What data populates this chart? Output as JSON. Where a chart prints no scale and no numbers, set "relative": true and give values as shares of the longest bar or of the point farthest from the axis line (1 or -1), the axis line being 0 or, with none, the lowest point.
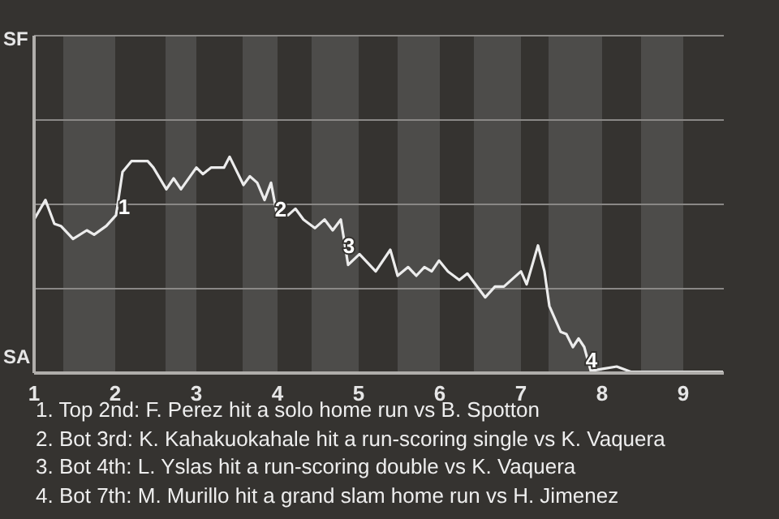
{
  "chart_data": {
    "type": "line",
    "x": [
      1.0,
      1.14,
      1.25,
      1.33,
      1.48,
      1.65,
      1.74,
      1.89,
      2.01,
      2.09,
      2.2,
      2.4,
      2.47,
      2.63,
      2.72,
      2.81,
      3.0,
      3.08,
      3.18,
      3.34,
      3.41,
      3.58,
      3.66,
      3.75,
      3.84,
      3.92,
      3.99,
      4.13,
      4.22,
      4.32,
      4.46,
      4.58,
      4.68,
      4.78,
      4.87,
      5.01,
      5.21,
      5.39,
      5.48,
      5.61,
      5.71,
      5.81,
      5.9,
      5.99,
      6.1,
      6.24,
      6.34,
      6.56,
      6.68,
      6.79,
      7.0,
      7.07,
      7.21,
      7.29,
      7.35,
      7.49,
      7.56,
      7.64,
      7.71,
      7.78,
      7.86,
      8.02,
      8.18,
      8.36,
      8.52,
      9.49
    ],
    "series": [
      {
        "color": "#ececec",
        "values": [
          0.71,
          0.8,
          0.69,
          0.68,
          0.62,
          0.66,
          0.64,
          0.68,
          0.73,
          0.93,
          0.98,
          0.98,
          0.95,
          0.85,
          0.9,
          0.85,
          0.95,
          0.92,
          0.95,
          0.95,
          1,
          0.87,
          0.91,
          0.88,
          0.8,
          0.88,
          0.74,
          0.73,
          0.76,
          0.71,
          0.67,
          0.71,
          0.66,
          0.71,
          0.5,
          0.55,
          0.47,
          0.57,
          0.45,
          0.49,
          0.45,
          0.49,
          0.47,
          0.52,
          0.47,
          0.43,
          0.46,
          0.35,
          0.4,
          0.4,
          0.47,
          0.41,
          0.59,
          0.47,
          0.31,
          0.19,
          0.18,
          0.12,
          0.16,
          0.12,
          0.01,
          0.02,
          0.03,
          0.005,
          0.005,
          0.005
        ]
      }
    ],
    "relative": true,
    "xlim": [
      1,
      9.5
    ],
    "xticks": [
      1,
      2,
      3,
      4,
      5,
      6,
      7,
      8,
      9
    ],
    "ref_lines": [
      {
        "axis": "y",
        "value": 0.39,
        "color": "#8a8886"
      },
      {
        "axis": "y",
        "value": 0.78,
        "color": "#8a8886"
      },
      {
        "axis": "y",
        "value": 1.17,
        "color": "#8a8886"
      },
      {
        "axis": "y",
        "value": 1.56,
        "color": "#8a8886"
      }
    ],
    "marker": "none",
    "line_style": "solid",
    "bands": [
      {
        "axis": "x",
        "from": 1.36,
        "to": 2,
        "color": "#4d4c4a"
      },
      {
        "axis": "x",
        "from": 2.62,
        "to": 3,
        "color": "#4d4c4a"
      },
      {
        "axis": "x",
        "from": 3.57,
        "to": 4,
        "color": "#4d4c4a"
      },
      {
        "axis": "x",
        "from": 4.42,
        "to": 5,
        "color": "#4d4c4a"
      },
      {
        "axis": "x",
        "from": 5.48,
        "to": 6,
        "color": "#4d4c4a"
      },
      {
        "axis": "x",
        "from": 6.42,
        "to": 7,
        "color": "#4d4c4a"
      },
      {
        "axis": "x",
        "from": 7.34,
        "to": 8,
        "color": "#4d4c4a"
      },
      {
        "axis": "x",
        "from": 8.48,
        "to": 9,
        "color": "#4d4c4a"
      }
    ],
    "annotations": [
      "SF",
      "SA",
      {
        "text": "1",
        "x": 2.11,
        "y": 0.77
      },
      {
        "text": "2",
        "x": 4.04,
        "y": 0.76
      },
      {
        "text": "3",
        "x": 4.88,
        "y": 0.59
      },
      {
        "text": "4",
        "x": 7.87,
        "y": 0.06
      },
      "1. Top 2nd: F. Perez hit a solo home run vs B. Spotton",
      "2. Bot 3rd: K. Kahakuokahale hit a run-scoring single vs K. Vaquera",
      "3. Bot 4th: L. Yslas hit a run-scoring double vs K. Vaquera",
      "4. Bot 7th: M. Murillo hit a grand slam home run vs H. Jimenez"
    ]
  }
}
